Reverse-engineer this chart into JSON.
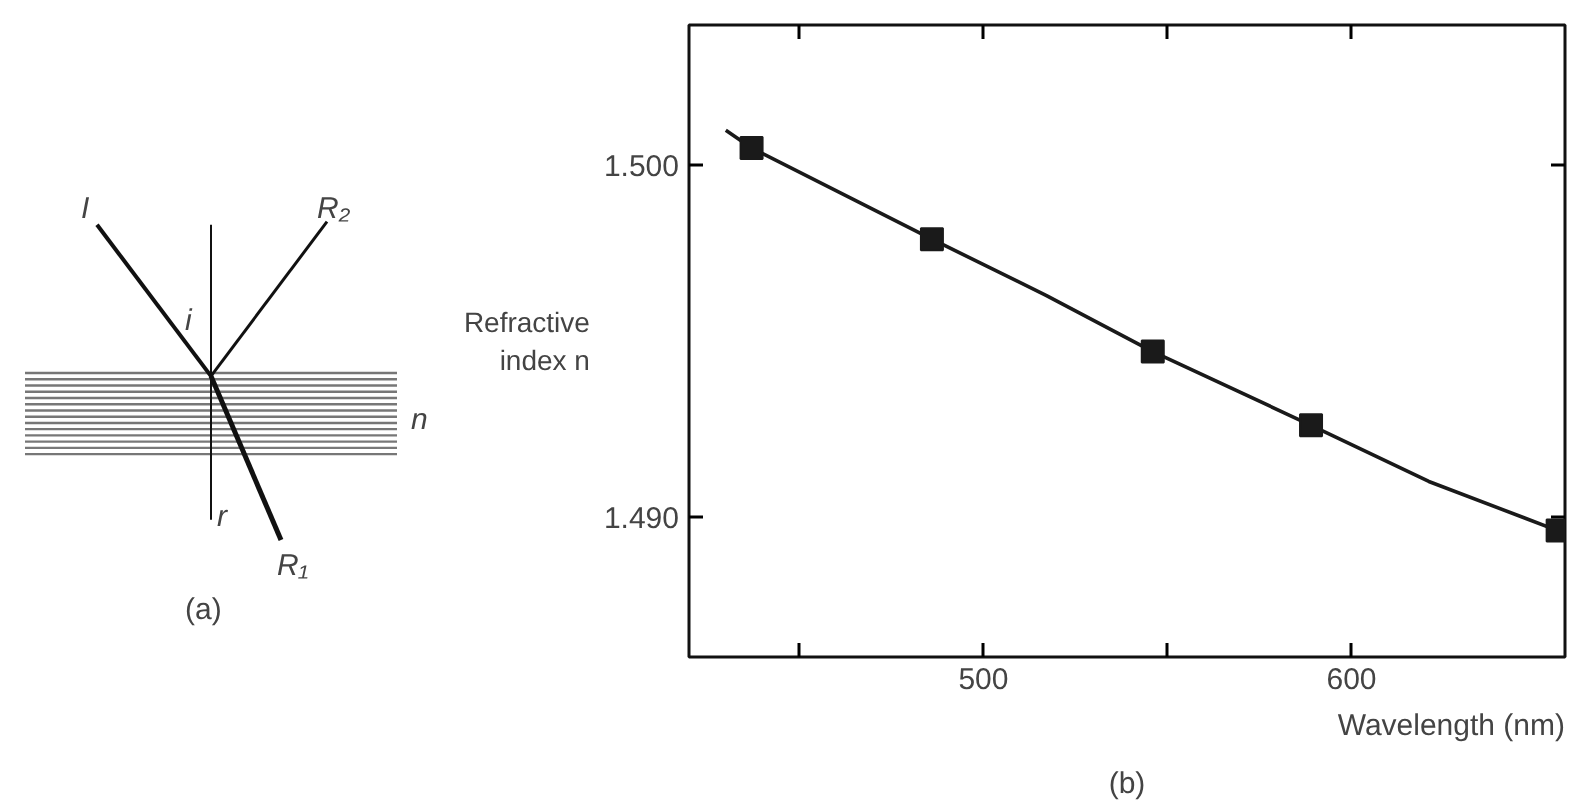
{
  "chart_data": [
    {
      "type": "other",
      "annotations": [
        "I",
        "R₂",
        "i",
        "n",
        "r",
        "R₁",
        "(a)"
      ]
    },
    {
      "type": "line",
      "xlabel": "Wavelength (nm)",
      "ylabel": "Refractive index n",
      "annotations": [
        "(b)"
      ],
      "xlim": [
        420,
        658
      ],
      "ylim": [
        1.486,
        1.504
      ],
      "xticks": [
        {
          "value": 450,
          "label": null
        },
        500,
        {
          "value": 550,
          "label": null
        },
        600
      ],
      "yticks": [
        {
          "value": 1.49,
          "label": "1.490"
        },
        {
          "value": 1.5,
          "label": "1.500"
        }
      ],
      "grid": false,
      "series": [
        {
          "type": "line",
          "color": "#1a1a1a",
          "marker": "none",
          "x": [
            430,
            437,
            486,
            517,
            546,
            589,
            621,
            656
          ],
          "values": [
            1.501,
            1.5005,
            1.4979,
            1.4963,
            1.4947,
            1.4926,
            1.491,
            1.4896
          ]
        },
        {
          "type": "scatter",
          "color": "#1a1a1a",
          "marker": "square",
          "x": [
            437,
            486,
            546,
            589,
            656
          ],
          "values": [
            1.5005,
            1.4979,
            1.4947,
            1.4926,
            1.4896
          ]
        }
      ]
    }
  ]
}
